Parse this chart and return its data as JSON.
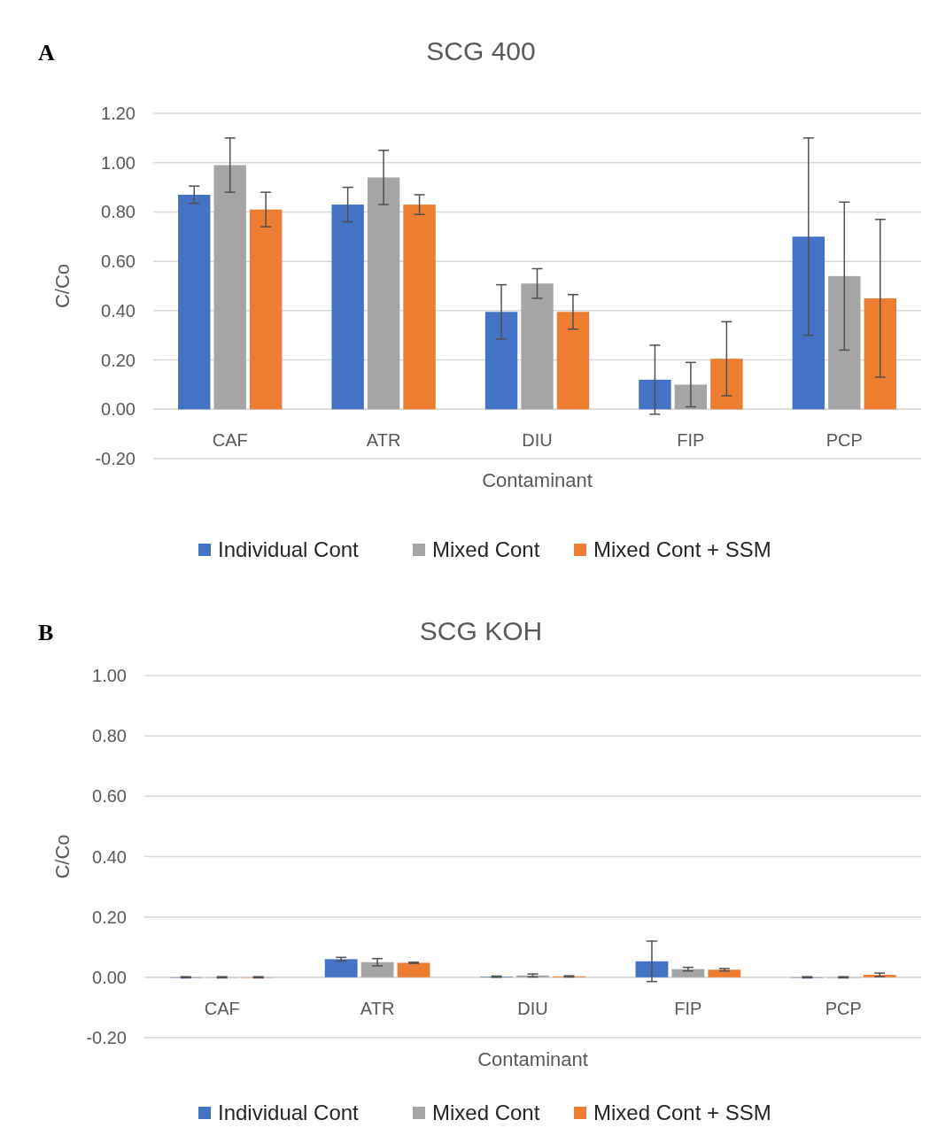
{
  "chart_data": [
    {
      "type": "bar",
      "title": "SCG 400",
      "xlabel": "Contaminant",
      "ylabel": "C/Co",
      "annotations": [
        "A"
      ],
      "categories": [
        "CAF",
        "ATR",
        "DIU",
        "FIP",
        "PCP"
      ],
      "series": [
        {
          "name": "Individual Cont",
          "color": "#4472c4",
          "values": [
            0.87,
            0.83,
            0.395,
            0.12,
            0.7
          ],
          "errors": [
            0.035,
            0.07,
            0.11,
            0.14,
            0.4
          ]
        },
        {
          "name": "Mixed Cont",
          "color": "#a5a5a5",
          "values": [
            0.99,
            0.94,
            0.51,
            0.1,
            0.54
          ],
          "errors": [
            0.11,
            0.11,
            0.06,
            0.09,
            0.3
          ]
        },
        {
          "name": "Mixed Cont + SSM",
          "color": "#ed7d31",
          "values": [
            0.81,
            0.83,
            0.395,
            0.205,
            0.45
          ],
          "errors": [
            0.07,
            0.04,
            0.07,
            0.15,
            0.32
          ]
        }
      ],
      "ylim": [
        -0.2,
        1.2
      ],
      "yticks": [
        {
          "value": -0.2,
          "label": "-0.20"
        },
        {
          "value": 0,
          "label": "0.00"
        },
        {
          "value": 0.2,
          "label": "0.20"
        },
        {
          "value": 0.4,
          "label": "0.40"
        },
        {
          "value": 0.6,
          "label": "0.60"
        },
        {
          "value": 0.8,
          "label": "0.80"
        },
        {
          "value": 1,
          "label": "1.00"
        },
        {
          "value": 1.2,
          "label": "1.20"
        }
      ],
      "grid": "y",
      "legend": "bottom"
    },
    {
      "type": "bar",
      "title": "SCG KOH",
      "xlabel": "Contaminant",
      "ylabel": "C/Co",
      "annotations": [
        "B"
      ],
      "categories": [
        "CAF",
        "ATR",
        "DIU",
        "FIP",
        "PCP"
      ],
      "series": [
        {
          "name": "Individual Cont",
          "color": "#4472c4",
          "values": [
            0,
            0.06,
            0.002,
            0.053,
            0
          ],
          "errors": [
            0.002,
            0.006,
            0.002,
            0.067,
            0.002
          ]
        },
        {
          "name": "Mixed Cont",
          "color": "#a5a5a5",
          "values": [
            0,
            0.05,
            0.006,
            0.027,
            0
          ],
          "errors": [
            0.002,
            0.012,
            0.005,
            0.006,
            0.002
          ]
        },
        {
          "name": "Mixed Cont + SSM",
          "color": "#ed7d31",
          "values": [
            0,
            0.048,
            0.003,
            0.025,
            0.008
          ],
          "errors": [
            0.002,
            0.002,
            0.002,
            0.004,
            0.006
          ]
        }
      ],
      "ylim": [
        -0.2,
        1.0
      ],
      "yticks": [
        {
          "value": -0.2,
          "label": "-0.20"
        },
        {
          "value": 0,
          "label": "0.00"
        },
        {
          "value": 0.2,
          "label": "0.20"
        },
        {
          "value": 0.4,
          "label": "0.40"
        },
        {
          "value": 0.6,
          "label": "0.60"
        },
        {
          "value": 0.8,
          "label": "0.80"
        },
        {
          "value": 1,
          "label": "1.00"
        }
      ],
      "grid": "y",
      "legend": "bottom"
    }
  ]
}
